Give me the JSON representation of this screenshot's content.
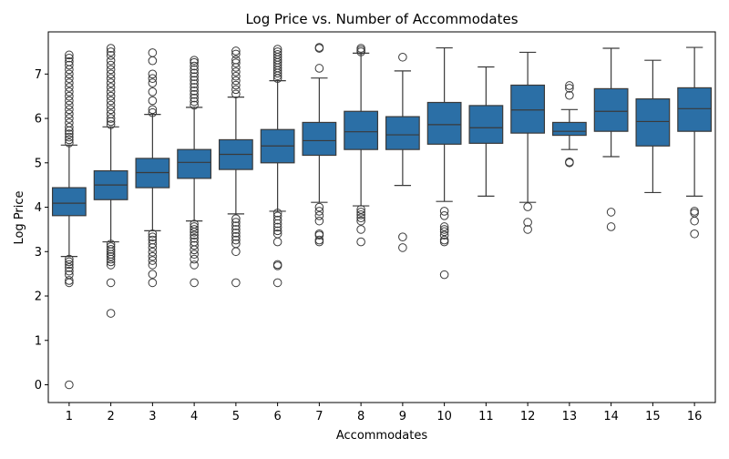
{
  "chart_data": {
    "type": "box",
    "title": "Log Price vs. Number of Accommodates",
    "xlabel": "Accommodates",
    "ylabel": "Log Price",
    "ylim": [
      -0.4,
      7.95
    ],
    "yticks": [
      0,
      1,
      2,
      3,
      4,
      5,
      6,
      7
    ],
    "grid": false,
    "legend": "none",
    "colors": {
      "box_fill": "#2b6fa6",
      "line": "#3a3a3a",
      "axis": "#000000"
    },
    "categories": [
      "1",
      "2",
      "3",
      "4",
      "5",
      "6",
      "7",
      "8",
      "9",
      "10",
      "11",
      "12",
      "13",
      "14",
      "15",
      "16"
    ],
    "boxes": [
      {
        "category": "1",
        "whisker_low": 2.89,
        "q1": 3.81,
        "median": 4.09,
        "q3": 4.44,
        "whisker_high": 5.4,
        "outliers": [
          0.0,
          2.3,
          2.35,
          2.48,
          2.56,
          2.64,
          2.71,
          2.77,
          2.83,
          5.45,
          5.52,
          5.58,
          5.65,
          5.72,
          5.8,
          5.9,
          6.0,
          6.1,
          6.2,
          6.3,
          6.4,
          6.5,
          6.6,
          6.7,
          6.8,
          6.9,
          7.0,
          7.1,
          7.2,
          7.28,
          7.36,
          7.43
        ]
      },
      {
        "category": "2",
        "whisker_low": 3.22,
        "q1": 4.17,
        "median": 4.5,
        "q3": 4.82,
        "whisker_high": 5.81,
        "outliers": [
          1.61,
          2.3,
          2.7,
          2.77,
          2.83,
          2.89,
          2.94,
          3.0,
          3.05,
          3.11,
          3.17,
          5.86,
          5.93,
          6.0,
          6.1,
          6.2,
          6.3,
          6.4,
          6.5,
          6.6,
          6.7,
          6.8,
          6.9,
          7.0,
          7.1,
          7.2,
          7.3,
          7.42,
          7.5,
          7.58
        ]
      },
      {
        "category": "3",
        "whisker_low": 3.47,
        "q1": 4.44,
        "median": 4.78,
        "q3": 5.1,
        "whisker_high": 6.09,
        "outliers": [
          2.3,
          2.49,
          2.7,
          2.8,
          2.89,
          2.99,
          3.09,
          3.18,
          3.26,
          3.33,
          3.4,
          6.13,
          6.2,
          6.4,
          6.6,
          6.8,
          6.9,
          7.0,
          7.3,
          7.48
        ]
      },
      {
        "category": "4",
        "whisker_low": 3.69,
        "q1": 4.65,
        "median": 5.01,
        "q3": 5.3,
        "whisker_high": 6.25,
        "outliers": [
          2.3,
          2.7,
          2.83,
          2.94,
          3.04,
          3.14,
          3.22,
          3.3,
          3.37,
          3.44,
          3.5,
          3.56,
          3.62,
          6.3,
          6.38,
          6.46,
          6.54,
          6.62,
          6.7,
          6.78,
          6.86,
          6.94,
          7.02,
          7.1,
          7.18,
          7.26,
          7.31
        ]
      },
      {
        "category": "5",
        "whisker_low": 3.85,
        "q1": 4.85,
        "median": 5.19,
        "q3": 5.52,
        "whisker_high": 6.48,
        "outliers": [
          2.3,
          3.0,
          3.18,
          3.26,
          3.34,
          3.42,
          3.5,
          3.58,
          3.66,
          3.74,
          6.55,
          6.65,
          6.75,
          6.85,
          6.95,
          7.05,
          7.15,
          7.25,
          7.32,
          7.45,
          7.52
        ]
      },
      {
        "category": "6",
        "whisker_low": 3.91,
        "q1": 5.0,
        "median": 5.38,
        "q3": 5.75,
        "whisker_high": 6.85,
        "outliers": [
          2.3,
          2.68,
          2.71,
          3.22,
          3.4,
          3.47,
          3.55,
          3.63,
          3.71,
          3.8,
          3.87,
          6.9,
          6.96,
          7.02,
          7.08,
          7.14,
          7.2,
          7.26,
          7.32,
          7.38,
          7.44,
          7.5,
          7.56
        ]
      },
      {
        "category": "7",
        "whisker_low": 4.11,
        "q1": 5.17,
        "median": 5.5,
        "q3": 5.91,
        "whisker_high": 6.91,
        "outliers": [
          3.22,
          3.26,
          3.37,
          3.4,
          3.69,
          3.81,
          3.91,
          4.0,
          7.13,
          7.58,
          7.6
        ]
      },
      {
        "category": "8",
        "whisker_low": 4.03,
        "q1": 5.3,
        "median": 5.7,
        "q3": 6.16,
        "whisker_high": 7.47,
        "outliers": [
          3.22,
          3.5,
          3.69,
          3.76,
          3.83,
          3.89,
          3.95,
          7.5,
          7.54,
          7.58
        ]
      },
      {
        "category": "9",
        "whisker_low": 4.49,
        "q1": 5.3,
        "median": 5.63,
        "q3": 6.04,
        "whisker_high": 7.07,
        "outliers": [
          3.09,
          3.33,
          7.38
        ]
      },
      {
        "category": "10",
        "whisker_low": 4.13,
        "q1": 5.42,
        "median": 5.86,
        "q3": 6.36,
        "whisker_high": 7.59,
        "outliers": [
          2.48,
          3.22,
          3.26,
          3.37,
          3.45,
          3.5,
          3.56,
          3.81,
          3.91
        ]
      },
      {
        "category": "11",
        "whisker_low": 4.25,
        "q1": 5.44,
        "median": 5.79,
        "q3": 6.29,
        "whisker_high": 7.16,
        "outliers": []
      },
      {
        "category": "12",
        "whisker_low": 4.11,
        "q1": 5.67,
        "median": 6.19,
        "q3": 6.75,
        "whisker_high": 7.49,
        "outliers": [
          3.5,
          3.66,
          4.01
        ]
      },
      {
        "category": "13",
        "whisker_low": 5.3,
        "q1": 5.62,
        "median": 5.71,
        "q3": 5.91,
        "whisker_high": 6.2,
        "outliers": [
          5.0,
          5.02,
          6.52,
          6.68,
          6.74
        ]
      },
      {
        "category": "14",
        "whisker_low": 5.14,
        "q1": 5.71,
        "median": 6.16,
        "q3": 6.67,
        "whisker_high": 7.58,
        "outliers": [
          3.56,
          3.89
        ]
      },
      {
        "category": "15",
        "whisker_low": 4.33,
        "q1": 5.38,
        "median": 5.93,
        "q3": 6.44,
        "whisker_high": 7.31,
        "outliers": []
      },
      {
        "category": "16",
        "whisker_low": 4.25,
        "q1": 5.71,
        "median": 6.22,
        "q3": 6.69,
        "whisker_high": 7.6,
        "outliers": [
          3.4,
          3.69,
          3.87,
          3.91
        ]
      }
    ]
  }
}
